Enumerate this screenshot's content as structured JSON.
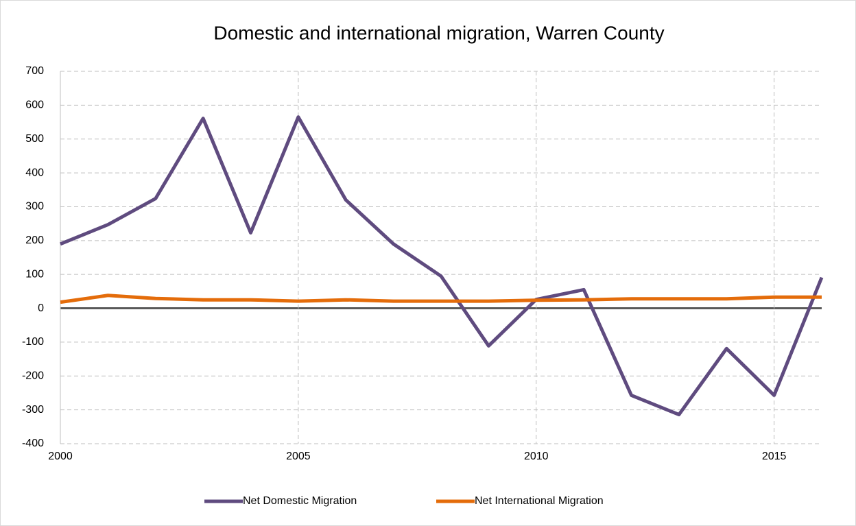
{
  "chart_data": {
    "type": "line",
    "title": "Domestic and international migration, Warren County",
    "x": [
      2000,
      2001,
      2002,
      2003,
      2004,
      2005,
      2006,
      2007,
      2008,
      2009,
      2010,
      2011,
      2012,
      2013,
      2014,
      2015,
      2016
    ],
    "series": [
      {
        "name": "Net Domestic Migration",
        "color": "#5f4b7f",
        "values": [
          190,
          247,
          324,
          561,
          223,
          565,
          320,
          190,
          95,
          -111,
          26,
          55,
          -257,
          -314,
          -119,
          -257,
          91
        ]
      },
      {
        "name": "Net International Migration",
        "color": "#e46c0a",
        "values": [
          18,
          38,
          29,
          25,
          25,
          21,
          25,
          21,
          21,
          21,
          24,
          25,
          28,
          28,
          28,
          33,
          33
        ]
      }
    ],
    "xlim": [
      2000,
      2016
    ],
    "xticks": [
      2000,
      2005,
      2010,
      2015
    ],
    "ylim": [
      -400,
      700
    ],
    "yticks": [
      -400,
      -300,
      -200,
      -100,
      0,
      100,
      200,
      300,
      400,
      500,
      600,
      700
    ],
    "grid": true,
    "legend": "bottom"
  }
}
